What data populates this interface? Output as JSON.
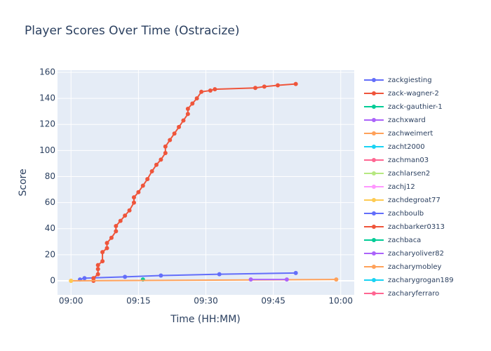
{
  "chart_data": {
    "type": "line",
    "title": "Player Scores Over Time (Ostracize)",
    "x_label": "Time (HH:MM)",
    "y_label": "Score",
    "xlim": [
      "08:57",
      "10:03"
    ],
    "xticks": [
      "09:00",
      "09:15",
      "09:30",
      "09:45",
      "10:00"
    ],
    "ylim": [
      -10.8,
      161.6
    ],
    "yticks": [
      0,
      20,
      40,
      60,
      80,
      100,
      120,
      140,
      160
    ],
    "grid": true,
    "series": [
      {
        "name": "zackgiesting",
        "color": "#636efa",
        "x": [
          "09:02",
          "09:03",
          "09:12",
          "09:20",
          "09:33",
          "09:50"
        ],
        "values": [
          1,
          2,
          3,
          4,
          5,
          6
        ]
      },
      {
        "name": "zack-wagner-2",
        "color": "#EF553B",
        "x": [
          "09:05",
          "09:05",
          "09:06",
          "09:06",
          "09:06",
          "09:07",
          "09:07",
          "09:08",
          "09:08",
          "09:09",
          "09:10",
          "09:10",
          "09:11",
          "09:12",
          "09:13",
          "09:14",
          "09:14",
          "09:15",
          "09:16",
          "09:17",
          "09:18",
          "09:19",
          "09:20",
          "09:21",
          "09:21",
          "09:22",
          "09:23",
          "09:24",
          "09:25",
          "09:26",
          "09:26",
          "09:27",
          "09:28",
          "09:29",
          "09:31",
          "09:32",
          "09:41",
          "09:43",
          "09:46",
          "09:50"
        ],
        "values": [
          0,
          2,
          5,
          9,
          12,
          15,
          22,
          25,
          29,
          33,
          38,
          42,
          46,
          50,
          54,
          60,
          64,
          68,
          73,
          78,
          84,
          89,
          93,
          98,
          103,
          108,
          113,
          118,
          123,
          128,
          132,
          136,
          140,
          145,
          146,
          147,
          148,
          149,
          150,
          151
        ]
      },
      {
        "name": "zack-gauthier-1",
        "color": "#00cc96",
        "x": [
          "09:16"
        ],
        "values": [
          1
        ]
      },
      {
        "name": "zachxward",
        "color": "#ab63fa",
        "x": [],
        "values": []
      },
      {
        "name": "zachweimert",
        "color": "#FFA15A",
        "x": [
          "09:00",
          "09:59"
        ],
        "values": [
          0,
          1
        ]
      },
      {
        "name": "zacht2000",
        "color": "#19d3f3",
        "x": [],
        "values": []
      },
      {
        "name": "zachman03",
        "color": "#FF6692",
        "x": [],
        "values": []
      },
      {
        "name": "zachlarsen2",
        "color": "#B6E880",
        "x": [],
        "values": []
      },
      {
        "name": "zachj12",
        "color": "#FF97FF",
        "x": [],
        "values": []
      },
      {
        "name": "zachdegroat77",
        "color": "#FECB52",
        "x": [
          "09:00"
        ],
        "values": [
          0
        ]
      },
      {
        "name": "zachboulb",
        "color": "#636efa",
        "x": [],
        "values": []
      },
      {
        "name": "zachbarker0313",
        "color": "#EF553B",
        "x": [],
        "values": []
      },
      {
        "name": "zachbaca",
        "color": "#00cc96",
        "x": [],
        "values": []
      },
      {
        "name": "zacharyoliver82",
        "color": "#ab63fa",
        "x": [
          "09:40",
          "09:48"
        ],
        "values": [
          1,
          1
        ]
      },
      {
        "name": "zacharymobley",
        "color": "#FFA15A",
        "x": [],
        "values": []
      },
      {
        "name": "zacharygrogan189",
        "color": "#19d3f3",
        "x": [],
        "values": []
      },
      {
        "name": "zacharyferraro",
        "color": "#FF6692",
        "x": [],
        "values": []
      }
    ]
  }
}
